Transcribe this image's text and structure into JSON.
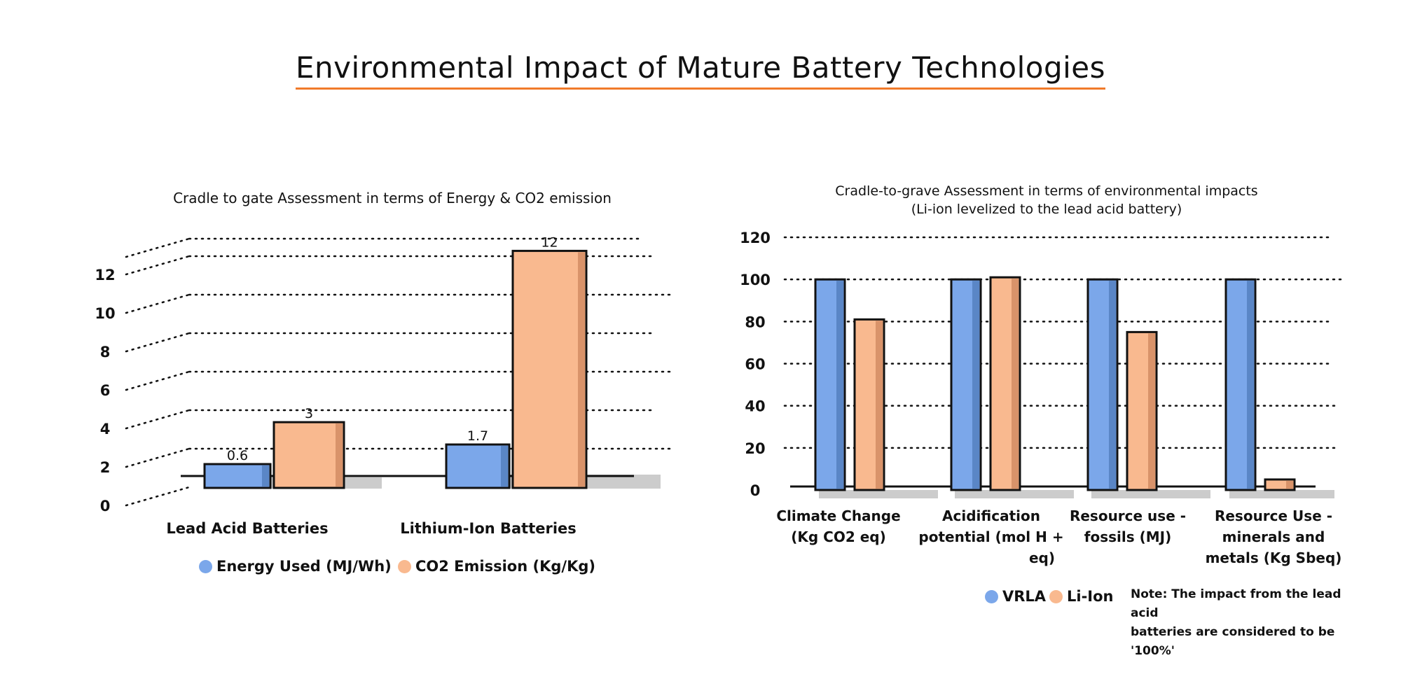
{
  "title": "Environmental Impact of Mature Battery Technologies",
  "colors": {
    "blue": "#7ba7ea",
    "blue_dark": "#5a86c6",
    "orange": "#f9b98f",
    "orange_dark": "#d9936a",
    "shadow": "#cccccc",
    "underline": "#f07a2a"
  },
  "chart_data": [
    {
      "type": "bar",
      "style": "3d-perspective",
      "title": "Cradle to gate Assessment in terms of Energy & CO2 emission",
      "categories": [
        "Lead Acid Batteries",
        "Lithium-Ion Batteries"
      ],
      "series": [
        {
          "name": "Energy Used (MJ/Wh)",
          "values": [
            0.6,
            1.7
          ],
          "labels": [
            "0.6",
            "1.7"
          ]
        },
        {
          "name": "CO2 Emission (Kg/Kg)",
          "values": [
            3,
            12
          ],
          "labels": [
            "3",
            "12"
          ]
        }
      ],
      "yticks": [
        0,
        2,
        4,
        6,
        8,
        10,
        12
      ],
      "ylim": [
        0,
        14
      ],
      "grid": true,
      "legend": "bottom",
      "xlabel": "",
      "ylabel": ""
    },
    {
      "type": "bar",
      "title": "Cradle-to-grave Assessment in terms of environmental impacts",
      "subtitle": "(Li-ion levelized to the lead acid battery)",
      "categories": [
        [
          "Climate Change",
          "(Kg CO2 eq)"
        ],
        [
          "Acidification",
          "potential (mol H +",
          "eq)"
        ],
        [
          "Resource use -",
          "fossils (MJ)"
        ],
        [
          "Resource Use -",
          "minerals and",
          "metals (Kg Sbeq)"
        ]
      ],
      "series": [
        {
          "name": "VRLA",
          "values": [
            100,
            100,
            100,
            100
          ]
        },
        {
          "name": "Li-Ion",
          "values": [
            81,
            101,
            75,
            5
          ]
        }
      ],
      "yticks": [
        0,
        20,
        40,
        60,
        80,
        100,
        120
      ],
      "ylim": [
        0,
        120
      ],
      "grid": true,
      "legend": "bottom-left",
      "xlabel": "",
      "ylabel": "",
      "note": [
        "Note: The impact from the lead acid",
        "batteries are considered to be '100%'"
      ]
    }
  ]
}
